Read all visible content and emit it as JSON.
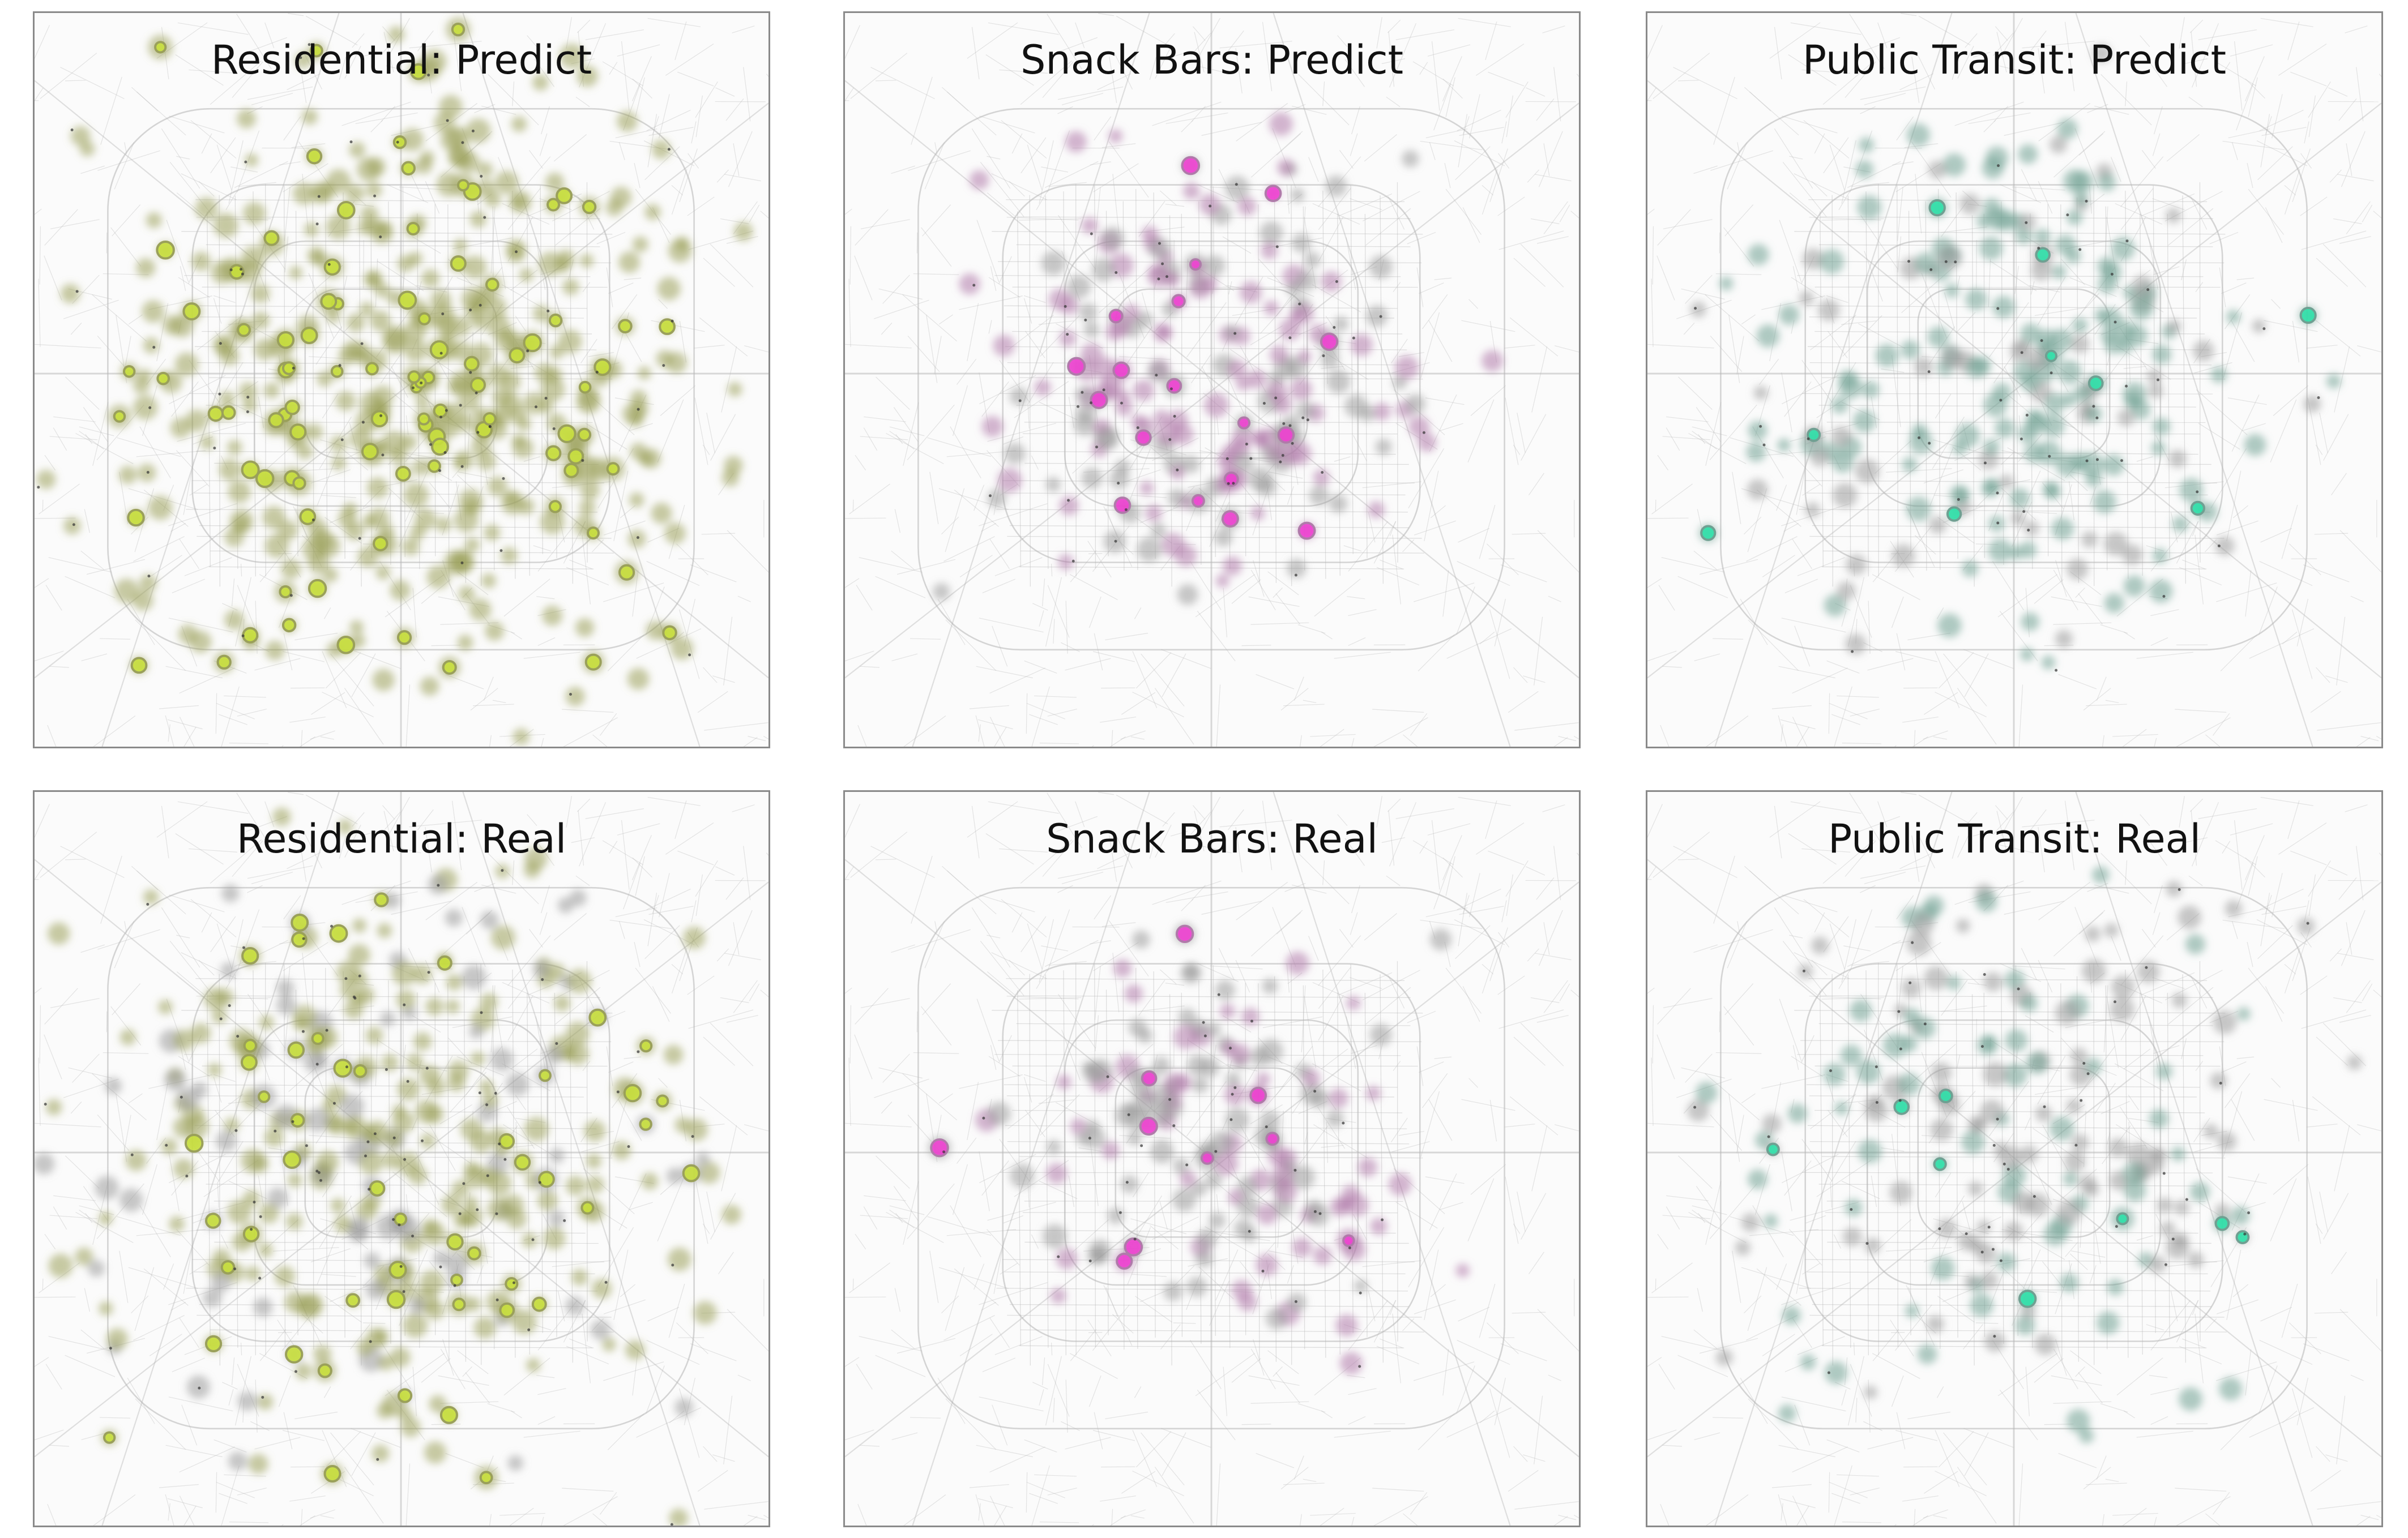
{
  "panels": [
    {
      "title": "Residential: Predict",
      "category": "residential",
      "mode": "predict",
      "accent_color": "#c8df3c",
      "halo_color": "#9aa05a"
    },
    {
      "title": "Snack Bars: Predict",
      "category": "snack_bars",
      "mode": "predict",
      "accent_color": "#ee3fd0",
      "halo_color": "#b07aaa"
    },
    {
      "title": "Public Transit: Predict",
      "category": "public_transit",
      "mode": "predict",
      "accent_color": "#2ee0a8",
      "halo_color": "#6fa092"
    },
    {
      "title": "Residential: Real",
      "category": "residential",
      "mode": "real",
      "accent_color": "#c8df3c",
      "halo_color": "#9aa05a"
    },
    {
      "title": "Snack Bars: Real",
      "category": "snack_bars",
      "mode": "real",
      "accent_color": "#ee3fd0",
      "halo_color": "#b07aaa"
    },
    {
      "title": "Public Transit: Real",
      "category": "public_transit",
      "mode": "real",
      "accent_color": "#2ee0a8",
      "halo_color": "#6fa092"
    }
  ],
  "basemap_road_color": "#b4b4b4",
  "background_color": "#fbfbfb"
}
